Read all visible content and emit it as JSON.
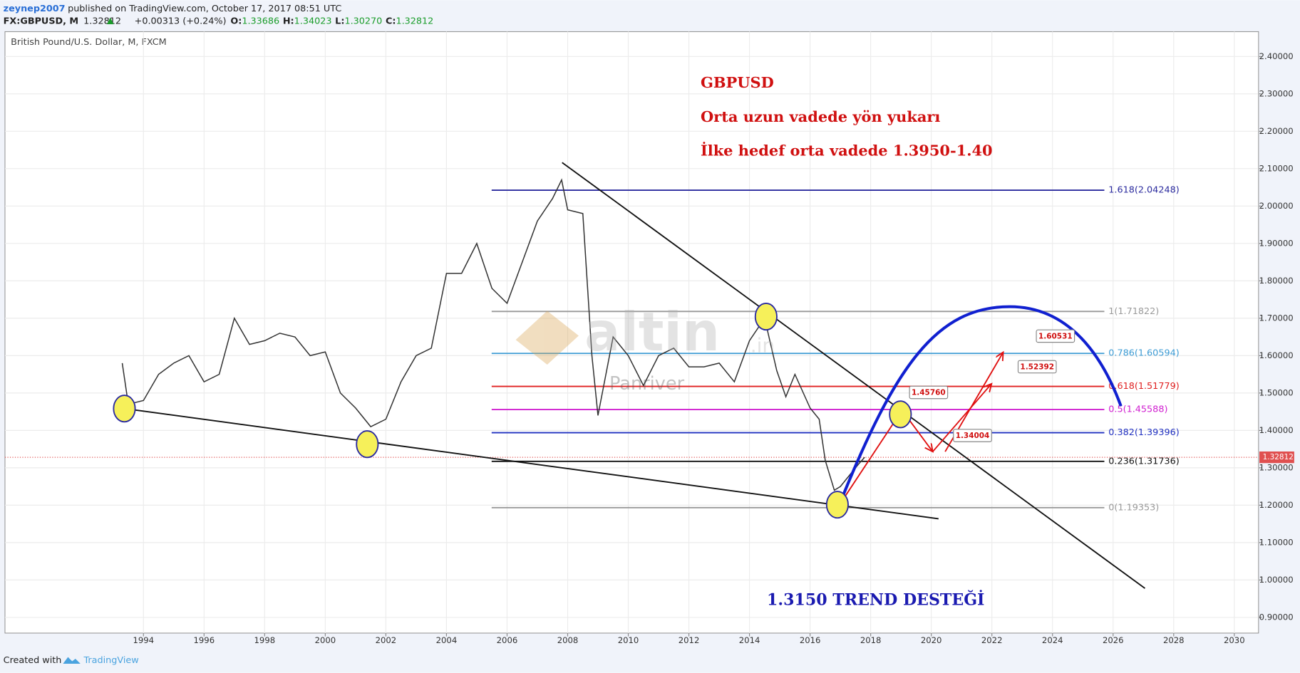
{
  "header": {
    "author": "zeynep2007",
    "published": "published on TradingView.com, October 17, 2017 08:51 UTC",
    "symbol": "FX:GBPUSD, M",
    "price": "1.32812",
    "change": "+0.00313 (+0.24%)",
    "o_label": "O:",
    "o": "1.33686",
    "h_label": "H:",
    "h": "1.34023",
    "l_label": "L:",
    "l": "1.30270",
    "c_label": "C:",
    "c": "1.32812"
  },
  "footer": {
    "created": "Created with",
    "brand": "TradingView"
  },
  "watermark": {
    "logo": "altin",
    "suffix": ".in",
    "sub": "Panriver"
  },
  "chart_data": {
    "type": "line",
    "title": "British Pound/U.S. Dollar, M, FXCM",
    "color": "#333333",
    "grid": true,
    "annotations": [
      "GBPUSD",
      "Orta uzun vadede yön yukarı",
      "İlke hedef orta vadede 1.3950-1.40"
    ],
    "support_note": "1.3150 TREND DESTEĞİ",
    "x": [
      1993.3,
      1993.5,
      1994.0,
      1994.5,
      1995.0,
      1995.5,
      1996.0,
      1996.5,
      1997.0,
      1997.5,
      1998.0,
      1998.5,
      1999.0,
      1999.5,
      2000.0,
      2000.5,
      2001.0,
      2001.5,
      2002.0,
      2002.5,
      2003.0,
      2003.5,
      2004.0,
      2004.5,
      2005.0,
      2005.5,
      2006.0,
      2006.5,
      2007.0,
      2007.5,
      2007.8,
      2008.0,
      2008.5,
      2008.8,
      2009.0,
      2009.5,
      2010.0,
      2010.5,
      2011.0,
      2011.5,
      2012.0,
      2012.5,
      2013.0,
      2013.5,
      2014.0,
      2014.5,
      2014.9,
      2015.2,
      2015.5,
      2016.0,
      2016.3,
      2016.5,
      2016.8,
      2017.0,
      2017.3,
      2017.6,
      2017.8
    ],
    "values": [
      1.58,
      1.47,
      1.48,
      1.55,
      1.58,
      1.6,
      1.53,
      1.55,
      1.7,
      1.63,
      1.64,
      1.66,
      1.65,
      1.6,
      1.61,
      1.5,
      1.46,
      1.41,
      1.43,
      1.53,
      1.6,
      1.62,
      1.82,
      1.82,
      1.9,
      1.78,
      1.74,
      1.85,
      1.96,
      2.02,
      2.07,
      1.99,
      1.98,
      1.6,
      1.44,
      1.65,
      1.6,
      1.52,
      1.6,
      1.62,
      1.57,
      1.57,
      1.58,
      1.53,
      1.64,
      1.7,
      1.56,
      1.49,
      1.55,
      1.46,
      1.43,
      1.32,
      1.24,
      1.25,
      1.28,
      1.31,
      1.328
    ],
    "xlim": [
      1989.43,
      2030.8
    ],
    "xticks": [
      1994,
      1996,
      1998,
      2000,
      2002,
      2004,
      2006,
      2008,
      2010,
      2012,
      2014,
      2016,
      2018,
      2020,
      2022,
      2024,
      2026,
      2028,
      2030
    ],
    "ylim": [
      0.858,
      2.4665
    ],
    "yticks": [
      {
        "value": 0.9,
        "label": "0.90000"
      },
      {
        "value": 1.0,
        "label": "1.00000"
      },
      {
        "value": 1.1,
        "label": "1.10000"
      },
      {
        "value": 1.2,
        "label": "1.20000"
      },
      {
        "value": 1.3,
        "label": "1.30000"
      },
      {
        "value": 1.4,
        "label": "1.40000"
      },
      {
        "value": 1.5,
        "label": "1.50000"
      },
      {
        "value": 1.6,
        "label": "1.60000"
      },
      {
        "value": 1.7,
        "label": "1.70000"
      },
      {
        "value": 1.8,
        "label": "1.80000"
      },
      {
        "value": 1.9,
        "label": "1.90000"
      },
      {
        "value": 2.0,
        "label": "2.00000"
      },
      {
        "value": 2.1,
        "label": "2.10000"
      },
      {
        "value": 2.2,
        "label": "2.20000"
      },
      {
        "value": 2.3,
        "label": "2.30000"
      },
      {
        "value": 2.4,
        "label": "2.40000"
      }
    ],
    "last_price": 1.32812,
    "fib_levels": [
      {
        "label": "1.618(2.04248)",
        "value": 2.04248,
        "color": "#2b2b9e"
      },
      {
        "label": "1(1.71822)",
        "value": 1.71822,
        "color": "#999999"
      },
      {
        "label": "0.786(1.60594)",
        "value": 1.60594,
        "color": "#3c9bd4"
      },
      {
        "label": "0.618(1.51779)",
        "value": 1.51779,
        "color": "#e02020"
      },
      {
        "label": "0.5(1.45588)",
        "value": 1.45588,
        "color": "#d020d0"
      },
      {
        "label": "0.382(1.39396)",
        "value": 1.39396,
        "color": "#2030c0"
      },
      {
        "label": "0.236(1.31736)",
        "value": 1.31736,
        "color": "#111111"
      },
      {
        "label": "0(1.19353)",
        "value": 1.19353,
        "color": "#999999"
      }
    ],
    "targets": {
      "values": [
        1.4576,
        1.34004,
        1.52392,
        1.60531
      ],
      "value_labels": [
        "1.45760",
        "1.34004",
        "1.52392",
        "1.60531"
      ]
    }
  }
}
